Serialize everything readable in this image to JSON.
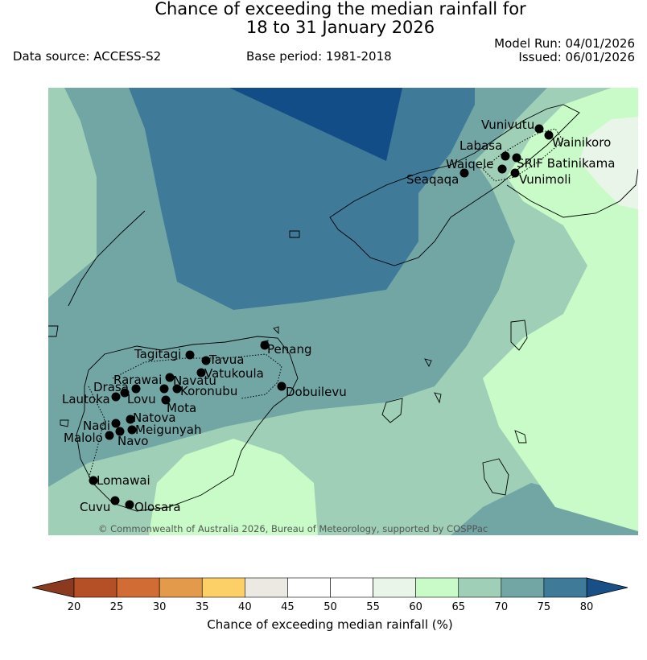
{
  "header": {
    "title_line1": "Chance of exceeding the median rainfall for",
    "title_line2": "18 to 31 January 2026",
    "data_source": "Data source: ACCESS-S2",
    "base_period": "Base period: 1981-2018",
    "model_run": "Model Run: 04/01/2026",
    "issued": "Issued: 06/01/2026"
  },
  "copyright": "© Commonwealth of Australia 2026, Bureau of Meteorology, supported by COSPPac",
  "map": {
    "towns": [
      {
        "name": "Vunivutu"
      },
      {
        "name": "Wainikoro"
      },
      {
        "name": "Labasa"
      },
      {
        "name": "SRIF Batinikama"
      },
      {
        "name": "Waiqele"
      },
      {
        "name": "Seaqaqa"
      },
      {
        "name": "Vunimoli"
      },
      {
        "name": "Penang"
      },
      {
        "name": "Tagitagi"
      },
      {
        "name": "Tavua"
      },
      {
        "name": "Vatukoula"
      },
      {
        "name": "Rarawai"
      },
      {
        "name": "Navatu"
      },
      {
        "name": "Drasa"
      },
      {
        "name": "Koronubu"
      },
      {
        "name": "Lautoka"
      },
      {
        "name": "Lovu"
      },
      {
        "name": "Dobuilevu"
      },
      {
        "name": "Mota"
      },
      {
        "name": "Natova"
      },
      {
        "name": "Nadi"
      },
      {
        "name": "Meigunyah"
      },
      {
        "name": "Malolo"
      },
      {
        "name": "Navo"
      },
      {
        "name": "Lomawai"
      },
      {
        "name": "Cuvu"
      },
      {
        "name": "Olosara"
      }
    ]
  },
  "colorbar": {
    "title": "Chance of exceeding median rainfall (%)",
    "ticks": [
      "20",
      "25",
      "30",
      "35",
      "40",
      "45",
      "50",
      "55",
      "60",
      "65",
      "70",
      "75",
      "80"
    ],
    "under_color": "#8c3a1f",
    "over_color": "#174f86",
    "colors": [
      "#b54f25",
      "#d16c34",
      "#e39a4a",
      "#fdd067",
      "#ece9e3",
      "#ffffff",
      "#ffffff",
      "#eaf5e9",
      "#c8fbc7",
      "#9fd0b7",
      "#72a6a5",
      "#3f7a99"
    ]
  }
}
